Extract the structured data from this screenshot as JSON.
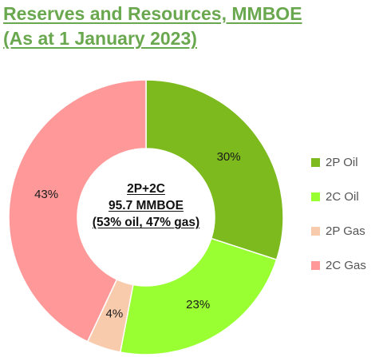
{
  "title_line1": "Reserves and Resources, MMBOE",
  "title_line2": "(As at 1 January 2023)",
  "center": {
    "line1": "2P+2C",
    "line2": "95.7 MMBOE",
    "line3": "(53% oil, 47% gas)"
  },
  "chart_data": {
    "type": "pie",
    "donut": true,
    "title": "Reserves and Resources, MMBOE (As at 1 January 2023)",
    "categories": [
      "2P Oil",
      "2C Oil",
      "2P Gas",
      "2C Gas"
    ],
    "values": [
      30,
      23,
      4,
      43
    ],
    "labels": [
      "30%",
      "23%",
      "4%",
      "43%"
    ],
    "colors": [
      "#7cba1e",
      "#99ff33",
      "#f8cbad",
      "#ff9999"
    ],
    "legend_position": "right"
  }
}
